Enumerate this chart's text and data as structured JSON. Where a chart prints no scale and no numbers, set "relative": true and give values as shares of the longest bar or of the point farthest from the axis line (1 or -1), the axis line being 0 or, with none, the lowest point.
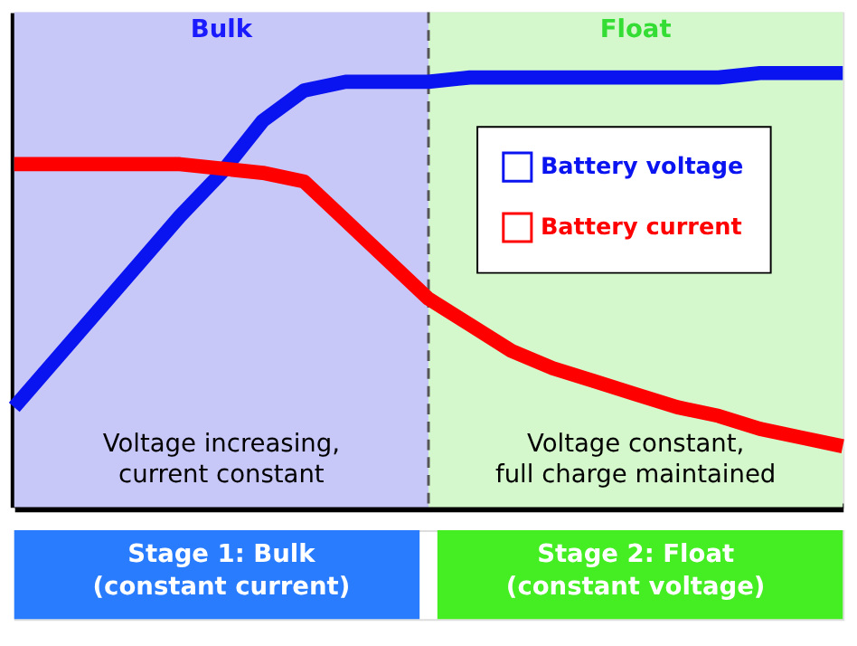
{
  "chart_data": {
    "type": "line",
    "relative": true,
    "categories": [
      null,
      null,
      null,
      null,
      null,
      null,
      null,
      null,
      null,
      null,
      null,
      null,
      null,
      null,
      null,
      null,
      null,
      null,
      null,
      null,
      null
    ],
    "tick_labels": false,
    "grid": false,
    "legend": "top right",
    "marker": "none",
    "line_style": "solid",
    "series": [
      {
        "name": "Battery voltage",
        "color": "#0a14f0",
        "values": [
          0.23,
          0.34,
          0.45,
          0.56,
          0.67,
          0.77,
          0.89,
          0.96,
          0.98,
          0.98,
          0.98,
          0.99,
          0.99,
          0.99,
          0.99,
          0.99,
          0.99,
          0.99,
          1,
          1,
          1
        ]
      },
      {
        "name": "Battery current",
        "color": "#ff0000",
        "values": [
          0.79,
          0.79,
          0.79,
          0.79,
          0.79,
          0.78,
          0.77,
          0.75,
          0.66,
          0.57,
          0.48,
          0.42,
          0.36,
          0.32,
          0.29,
          0.26,
          0.23,
          0.21,
          0.18,
          0.16,
          0.14
        ]
      }
    ],
    "annotations": [
      "Bulk",
      "Float",
      "Voltage increasing,\ncurrent constant",
      "Voltage constant,\nfull charge maintained",
      "Stage 1: Bulk\n(constant current)",
      "Stage 2: Float\n(constant voltage)"
    ]
  }
}
